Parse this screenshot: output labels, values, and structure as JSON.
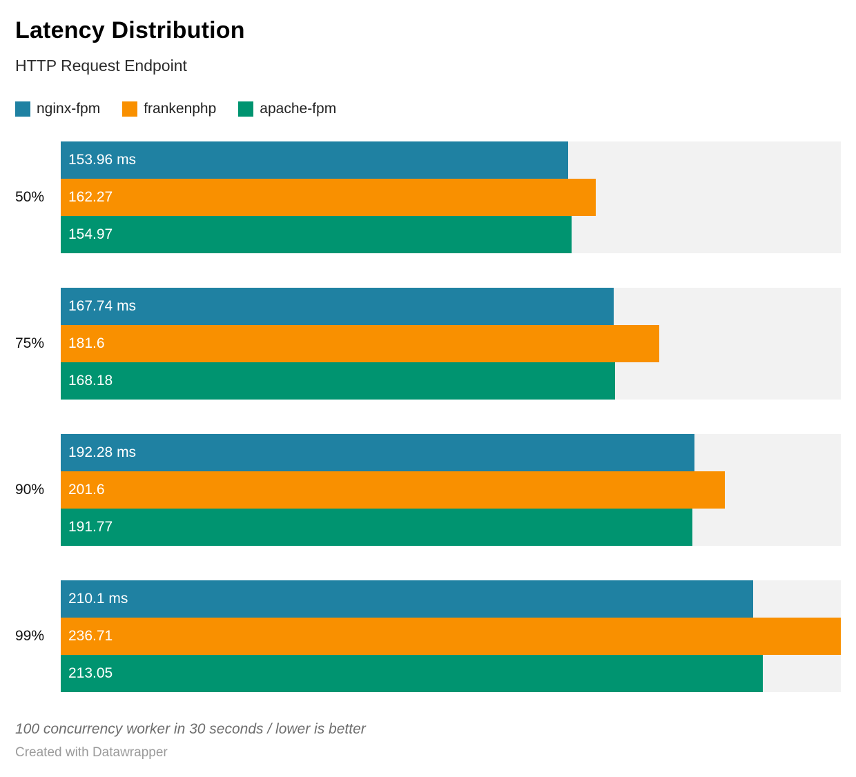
{
  "header": {
    "title": "Latency Distribution",
    "subtitle": "HTTP Request Endpoint"
  },
  "legend": [
    {
      "label": "nginx-fpm",
      "color": "#1f81a2"
    },
    {
      "label": "frankenphp",
      "color": "#f99000"
    },
    {
      "label": "apache-fpm",
      "color": "#009470"
    }
  ],
  "chart_data": {
    "type": "bar",
    "orientation": "horizontal",
    "unit": "ms",
    "title": "Latency Distribution",
    "subtitle": "HTTP Request Endpoint",
    "categories": [
      "50%",
      "75%",
      "90%",
      "99%"
    ],
    "series": [
      {
        "name": "nginx-fpm",
        "color": "#1f81a2",
        "values": [
          153.96,
          167.74,
          192.28,
          210.1
        ]
      },
      {
        "name": "frankenphp",
        "color": "#f99000",
        "values": [
          162.27,
          181.6,
          201.6,
          236.71
        ]
      },
      {
        "name": "apache-fpm",
        "color": "#009470",
        "values": [
          154.97,
          168.18,
          191.77,
          213.05
        ]
      }
    ],
    "bar_labels": [
      [
        "153.96 ms",
        "162.27",
        "154.97"
      ],
      [
        "167.74 ms",
        "181.6",
        "168.18"
      ],
      [
        "192.28 ms",
        "201.6",
        "191.77"
      ],
      [
        "210.1 ms",
        "236.71",
        "213.05"
      ]
    ],
    "xmax": 236.71,
    "track_color": "#f2f2f2",
    "grid": false,
    "legend_position": "top"
  },
  "footer": {
    "note": "100 concurrency worker in 30 seconds / lower is better",
    "attribution": "Created with Datawrapper"
  }
}
